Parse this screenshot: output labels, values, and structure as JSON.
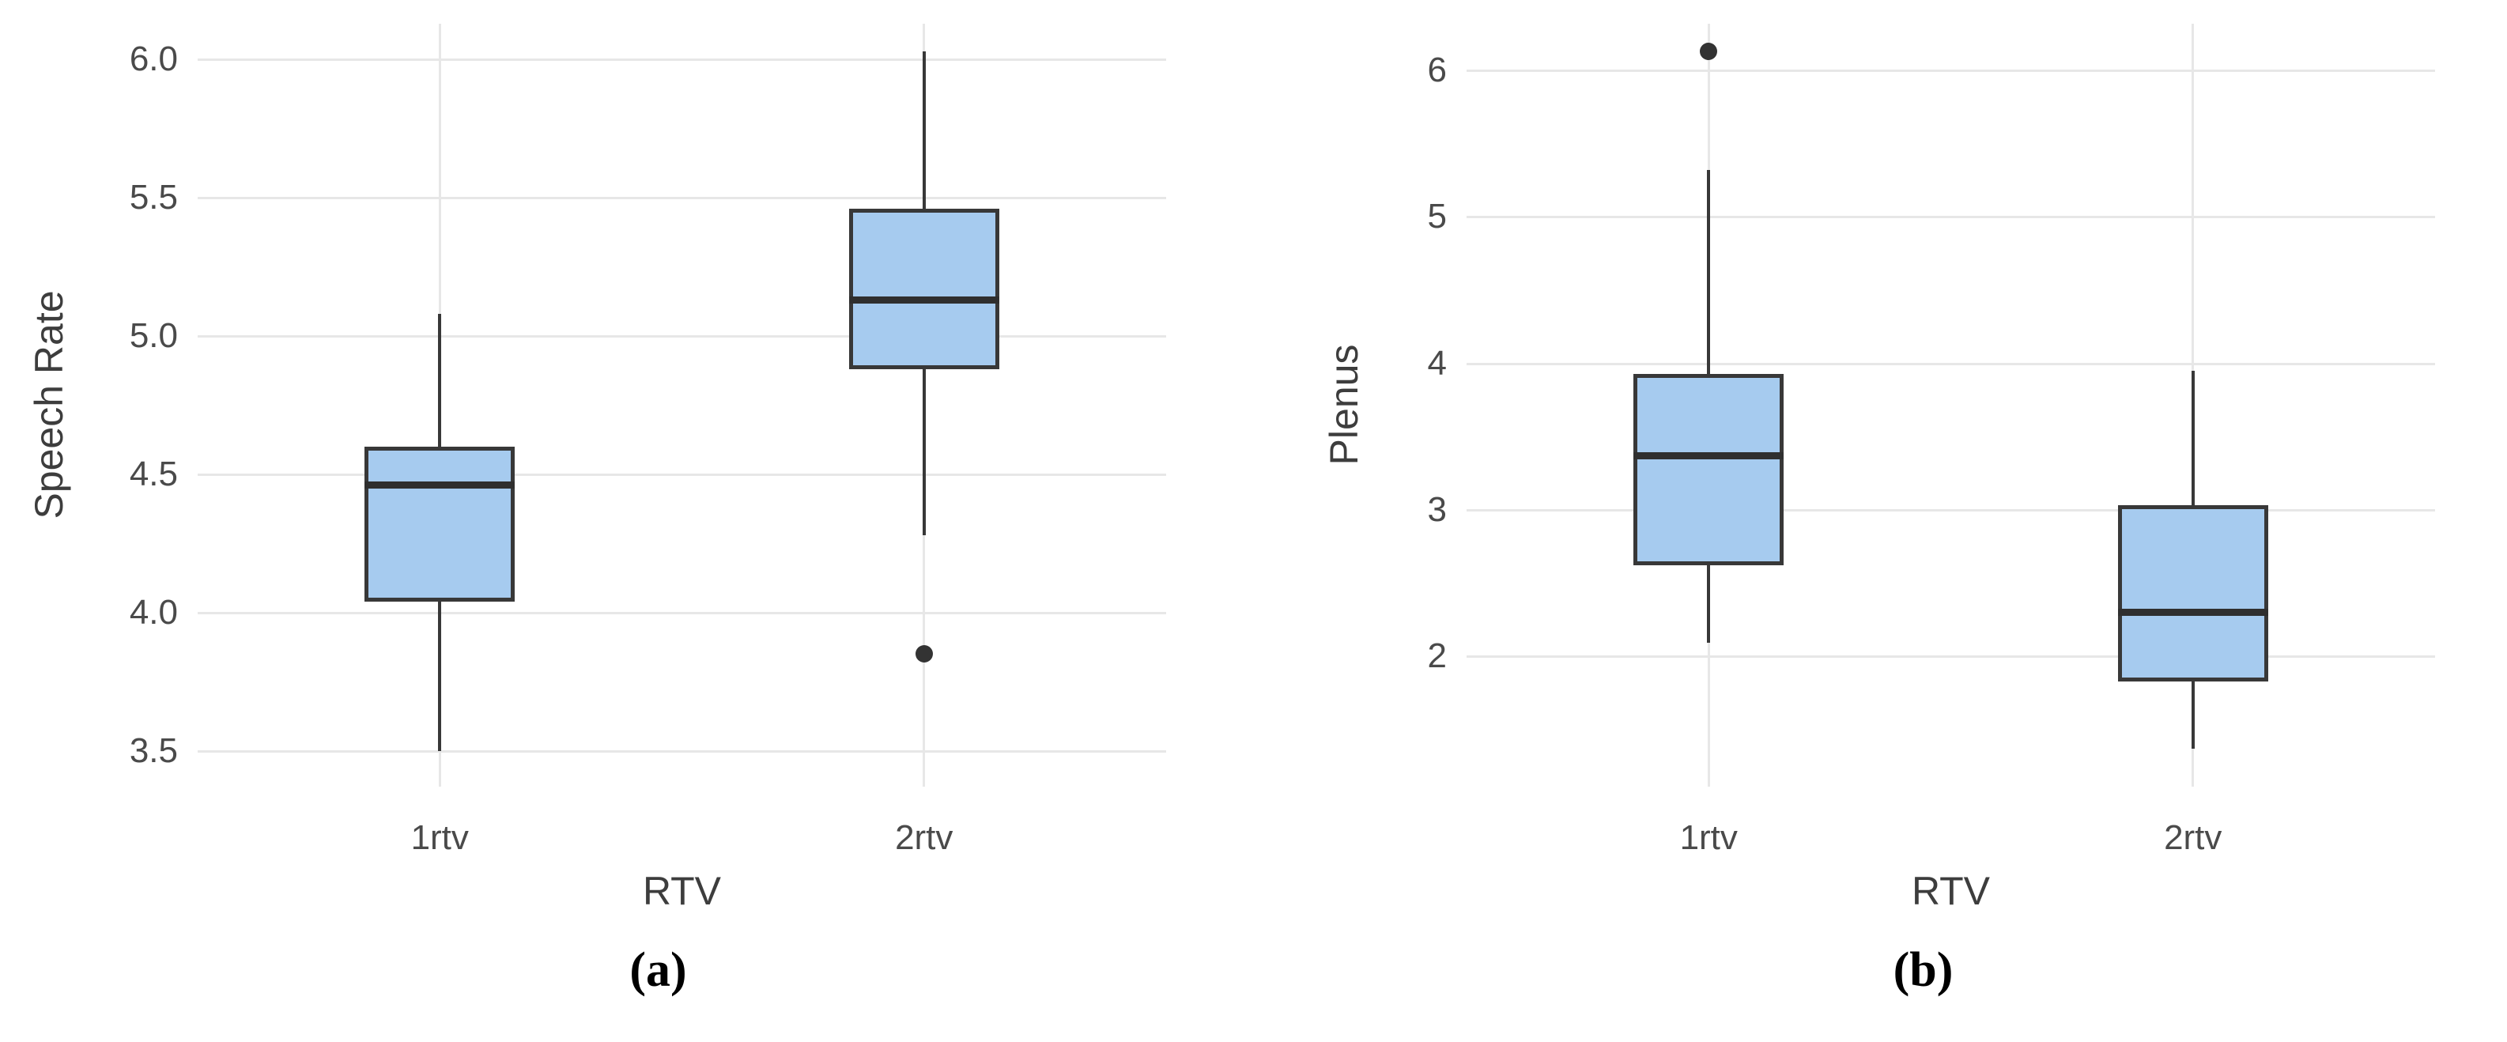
{
  "figure": {
    "background": "#ffffff"
  },
  "colors": {
    "box_fill": "#a6cbef",
    "box_border": "#383838",
    "median_line": "#2f2f2f",
    "gridline": "#e7e7e7",
    "tick_text": "#4a4a4a",
    "axis_title_text": "#3d3d3d",
    "outlier": "#333333"
  },
  "chart_data": [
    {
      "type": "box",
      "panel_label": "(a)",
      "xlabel": "RTV",
      "ylabel": "Speech Rate",
      "categories": [
        "1rtv",
        "2rtv"
      ],
      "yticks": [
        3.5,
        4.0,
        4.5,
        5.0,
        5.5,
        6.0
      ],
      "ytick_labels": [
        "3.5",
        "4.0",
        "4.5",
        "5.0",
        "5.5",
        "6.0"
      ],
      "ylim": [
        3.37,
        6.13
      ],
      "grid": "light-major-gridlines, no axis lines",
      "legend": "none",
      "series": [
        {
          "category": "1rtv",
          "whisker_low": 3.5,
          "q1": 4.04,
          "median": 4.46,
          "q3": 4.6,
          "whisker_high": 5.08,
          "outliers": []
        },
        {
          "category": "2rtv",
          "whisker_low": 4.28,
          "q1": 4.88,
          "median": 5.13,
          "q3": 5.46,
          "whisker_high": 6.03,
          "outliers": [
            3.85
          ]
        }
      ]
    },
    {
      "type": "box",
      "panel_label": "(b)",
      "xlabel": "RTV",
      "ylabel": "Plenus",
      "categories": [
        "1rtv",
        "2rtv"
      ],
      "yticks": [
        2,
        3,
        4,
        5,
        6
      ],
      "ytick_labels": [
        "2",
        "3",
        "4",
        "5",
        "6"
      ],
      "ylim": [
        1.11,
        6.32
      ],
      "grid": "light-major-gridlines, no axis lines",
      "legend": "none",
      "series": [
        {
          "category": "1rtv",
          "whisker_low": 2.09,
          "q1": 2.62,
          "median": 3.37,
          "q3": 3.93,
          "whisker_high": 5.32,
          "outliers": [
            6.13
          ]
        },
        {
          "category": "2rtv",
          "whisker_low": 1.37,
          "q1": 1.83,
          "median": 2.3,
          "q3": 3.03,
          "whisker_high": 3.95,
          "outliers": []
        }
      ]
    }
  ]
}
